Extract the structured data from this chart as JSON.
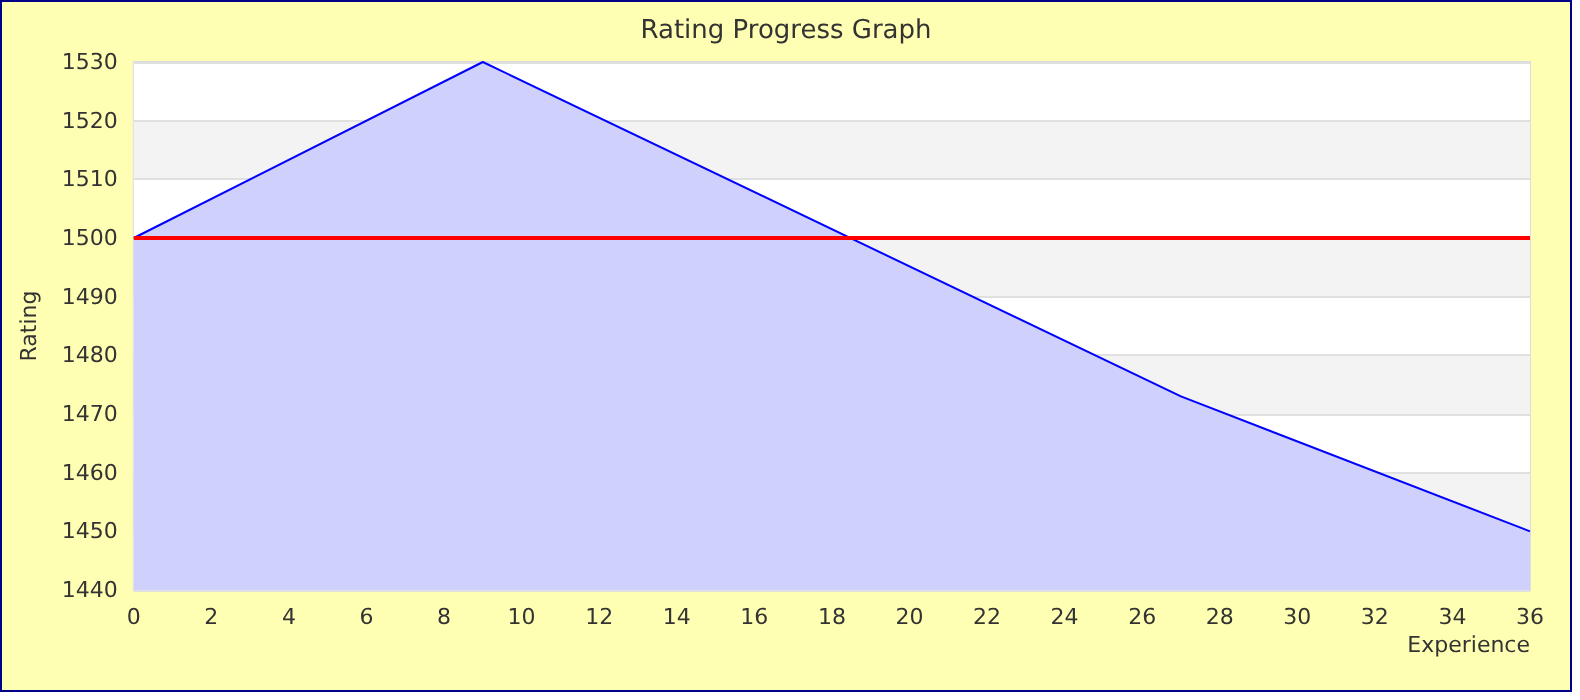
{
  "chart_data": {
    "type": "area",
    "title": "Rating Progress Graph",
    "xlabel": "Experience",
    "ylabel": "Rating",
    "x": [
      0,
      9,
      27,
      36
    ],
    "series": [
      {
        "color": "#0000ff",
        "values": [
          1500,
          1530,
          1473,
          1450
        ]
      }
    ],
    "xlim": [
      0,
      36
    ],
    "xticks": [
      0,
      2,
      4,
      6,
      8,
      10,
      12,
      14,
      16,
      18,
      20,
      22,
      24,
      26,
      28,
      30,
      32,
      34,
      36
    ],
    "ylim": [
      1440,
      1530
    ],
    "yticks": [
      1440,
      1450,
      1460,
      1470,
      1480,
      1490,
      1500,
      1510,
      1520,
      1530
    ],
    "ref_lines": [
      {
        "axis": "y",
        "value": 1500,
        "color": "#ff0000"
      }
    ],
    "grid": "y",
    "marker": "none",
    "line_style": "solid"
  }
}
